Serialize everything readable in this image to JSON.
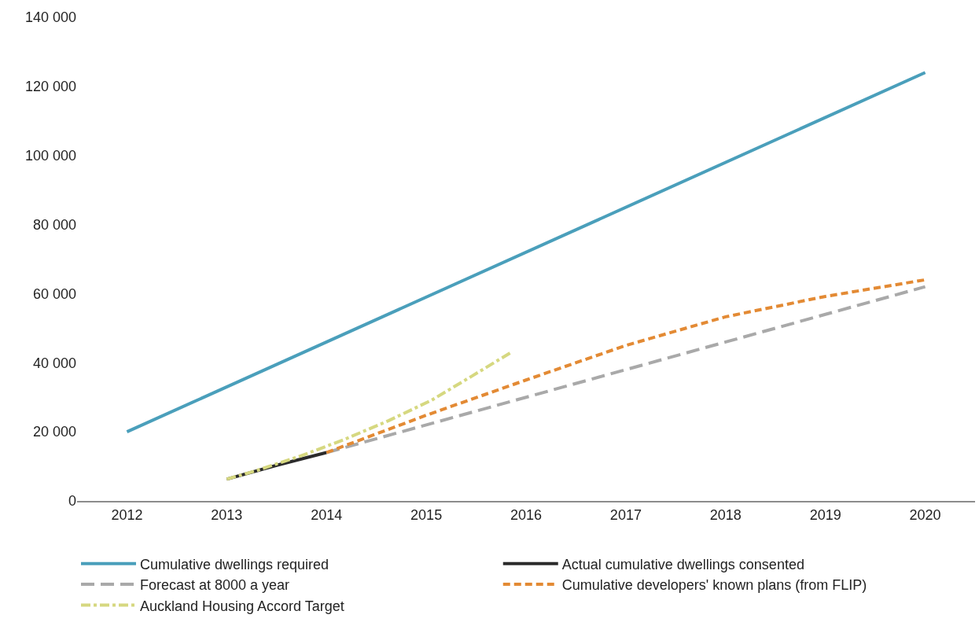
{
  "chart_data": {
    "type": "line",
    "xlim": [
      2011.5,
      2020.5
    ],
    "xticks": [
      2012,
      2013,
      2014,
      2015,
      2016,
      2017,
      2018,
      2019,
      2020
    ],
    "ylim": [
      0,
      140000
    ],
    "yticks": [
      {
        "value": 0,
        "label": "0"
      },
      {
        "value": 20000,
        "label": "20 000"
      },
      {
        "value": 40000,
        "label": "40 000"
      },
      {
        "value": 60000,
        "label": "60 000"
      },
      {
        "value": 80000,
        "label": "80 000"
      },
      {
        "value": 100000,
        "label": "100 000"
      },
      {
        "value": 120000,
        "label": "120 000"
      },
      {
        "value": 140000,
        "label": "140 000"
      }
    ],
    "grid": false,
    "legend": "bottom",
    "marker": "none",
    "series": [
      {
        "name": "Cumulative dwellings required",
        "color": "#4a9fbb",
        "line_style": "solid",
        "x": [
          2012,
          2020
        ],
        "values": [
          20000,
          124000
        ]
      },
      {
        "name": "Actual cumulative dwellings consented",
        "color": "#2b2b2b",
        "line_style": "solid",
        "x": [
          2013,
          2013.5,
          2014
        ],
        "values": [
          6300,
          10300,
          14000
        ]
      },
      {
        "name": "Forecast at 8000 a year",
        "color": "#a9a9a9",
        "line_style": "longdash",
        "x": [
          2014,
          2015,
          2016,
          2017,
          2018,
          2019,
          2020
        ],
        "values": [
          14000,
          22000,
          30000,
          38000,
          46000,
          54000,
          62000
        ]
      },
      {
        "name": "Cumulative developers' known plans (from FLIP)",
        "color": "#e38a34",
        "line_style": "dashed",
        "x": [
          2014,
          2015,
          2016,
          2017,
          2018,
          2019,
          2020
        ],
        "values": [
          14000,
          24800,
          35000,
          45000,
          53300,
          59200,
          64000
        ]
      },
      {
        "name": "Auckland Housing Accord Target",
        "color": "#d6d880",
        "line_style": "dashdot",
        "x": [
          2013,
          2013.29,
          2013.74,
          2014.18,
          2014.62,
          2015.05,
          2015.45,
          2015.85
        ],
        "values": [
          6300,
          8700,
          13000,
          17800,
          23200,
          29100,
          36000,
          43000
        ]
      }
    ]
  }
}
